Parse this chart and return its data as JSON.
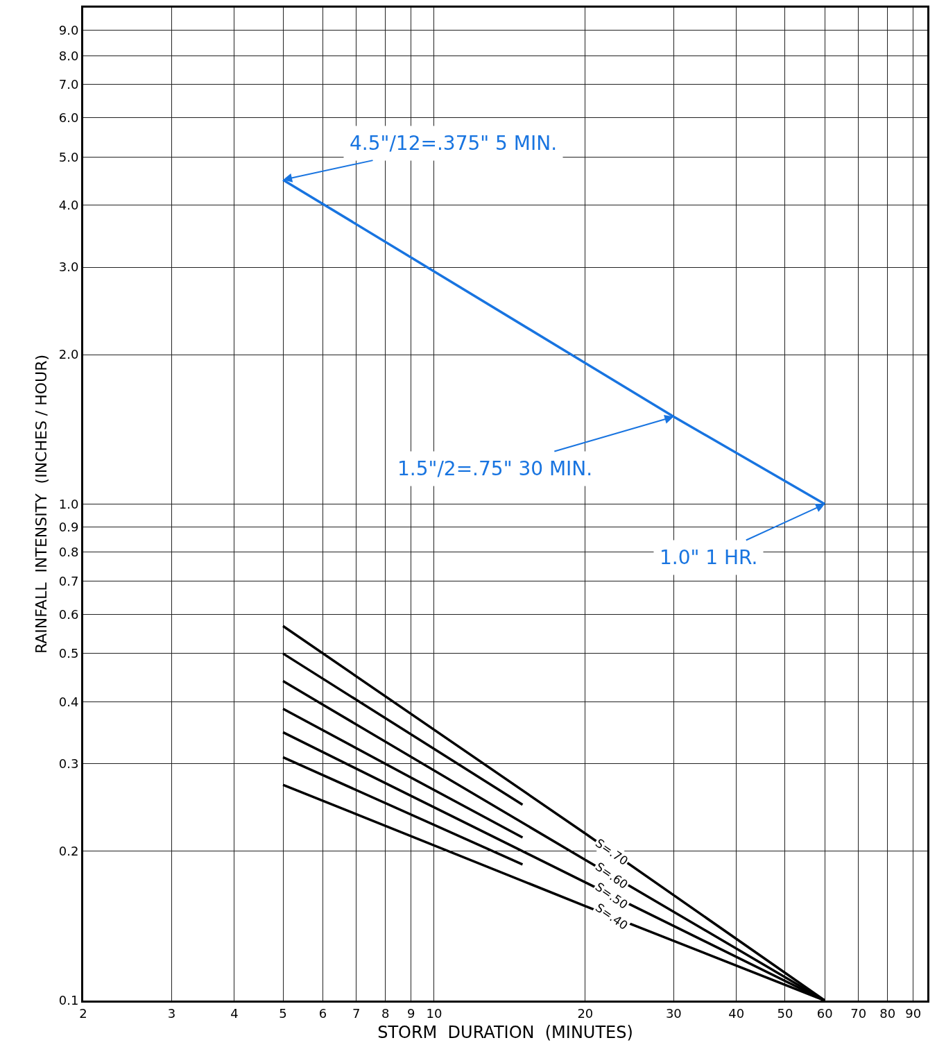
{
  "chart_data": {
    "type": "line",
    "xlabel": "STORM  DURATION  (MINUTES)",
    "ylabel": "RAINFALL  INTENSITY  (INCHES / HOUR)",
    "log": "xy",
    "grid": true,
    "legend": false,
    "marker": "none",
    "line_style": "solid",
    "xlim": [
      2,
      96
    ],
    "xticks": [
      2,
      3,
      4,
      5,
      6,
      7,
      8,
      9,
      10,
      20,
      30,
      40,
      50,
      60,
      70,
      80,
      90
    ],
    "ylim": [
      0.1,
      10
    ],
    "yticks": [
      0.1,
      0.2,
      0.3,
      0.4,
      0.5,
      0.6,
      0.7,
      0.8,
      0.9,
      {
        "value": 1,
        "label": "1.0"
      },
      {
        "value": 2,
        "label": "2.0"
      },
      {
        "value": 3,
        "label": "3.0"
      },
      {
        "value": 4,
        "label": "4.0"
      },
      {
        "value": 5,
        "label": "5.0"
      },
      {
        "value": 6,
        "label": "6.0"
      },
      {
        "value": 7,
        "label": "7.0"
      },
      {
        "value": 8,
        "label": "8.0"
      },
      {
        "value": 9,
        "label": "9.0"
      }
    ],
    "series": [
      {
        "color": "#1874e0",
        "x": [
          5,
          30,
          60
        ],
        "values": [
          4.5,
          1.5,
          1.0
        ]
      },
      {
        "name": "S=.70",
        "color": "#000000",
        "x": [
          5,
          20,
          60
        ],
        "values": [
          0.568,
          0.217,
          0.1
        ]
      },
      {
        "color": "#000000",
        "x": [
          5,
          15
        ],
        "values": [
          0.5,
          0.248
        ]
      },
      {
        "name": "S=.60",
        "color": "#000000",
        "x": [
          5,
          20,
          60
        ],
        "values": [
          0.44,
          0.192,
          0.1
        ]
      },
      {
        "color": "#000000",
        "x": [
          5,
          15
        ],
        "values": [
          0.387,
          0.213
        ]
      },
      {
        "name": "S=.50",
        "color": "#000000",
        "x": [
          5,
          20,
          60
        ],
        "values": [
          0.347,
          0.173,
          0.1
        ]
      },
      {
        "color": "#000000",
        "x": [
          5,
          15
        ],
        "values": [
          0.309,
          0.188
        ]
      },
      {
        "name": "S=.40",
        "color": "#000000",
        "x": [
          5,
          20,
          60
        ],
        "values": [
          0.272,
          0.155,
          0.1
        ]
      }
    ],
    "annotations": [
      {
        "text": "4.5\"/12=.375\" 5 MIN.",
        "x": 5,
        "y": 4.5
      },
      {
        "text": "1.5\"/2=.75\" 30 MIN.",
        "x": 30,
        "y": 1.5
      },
      {
        "text": "1.0\" 1 HR.",
        "x": 60,
        "y": 1.0
      }
    ]
  }
}
